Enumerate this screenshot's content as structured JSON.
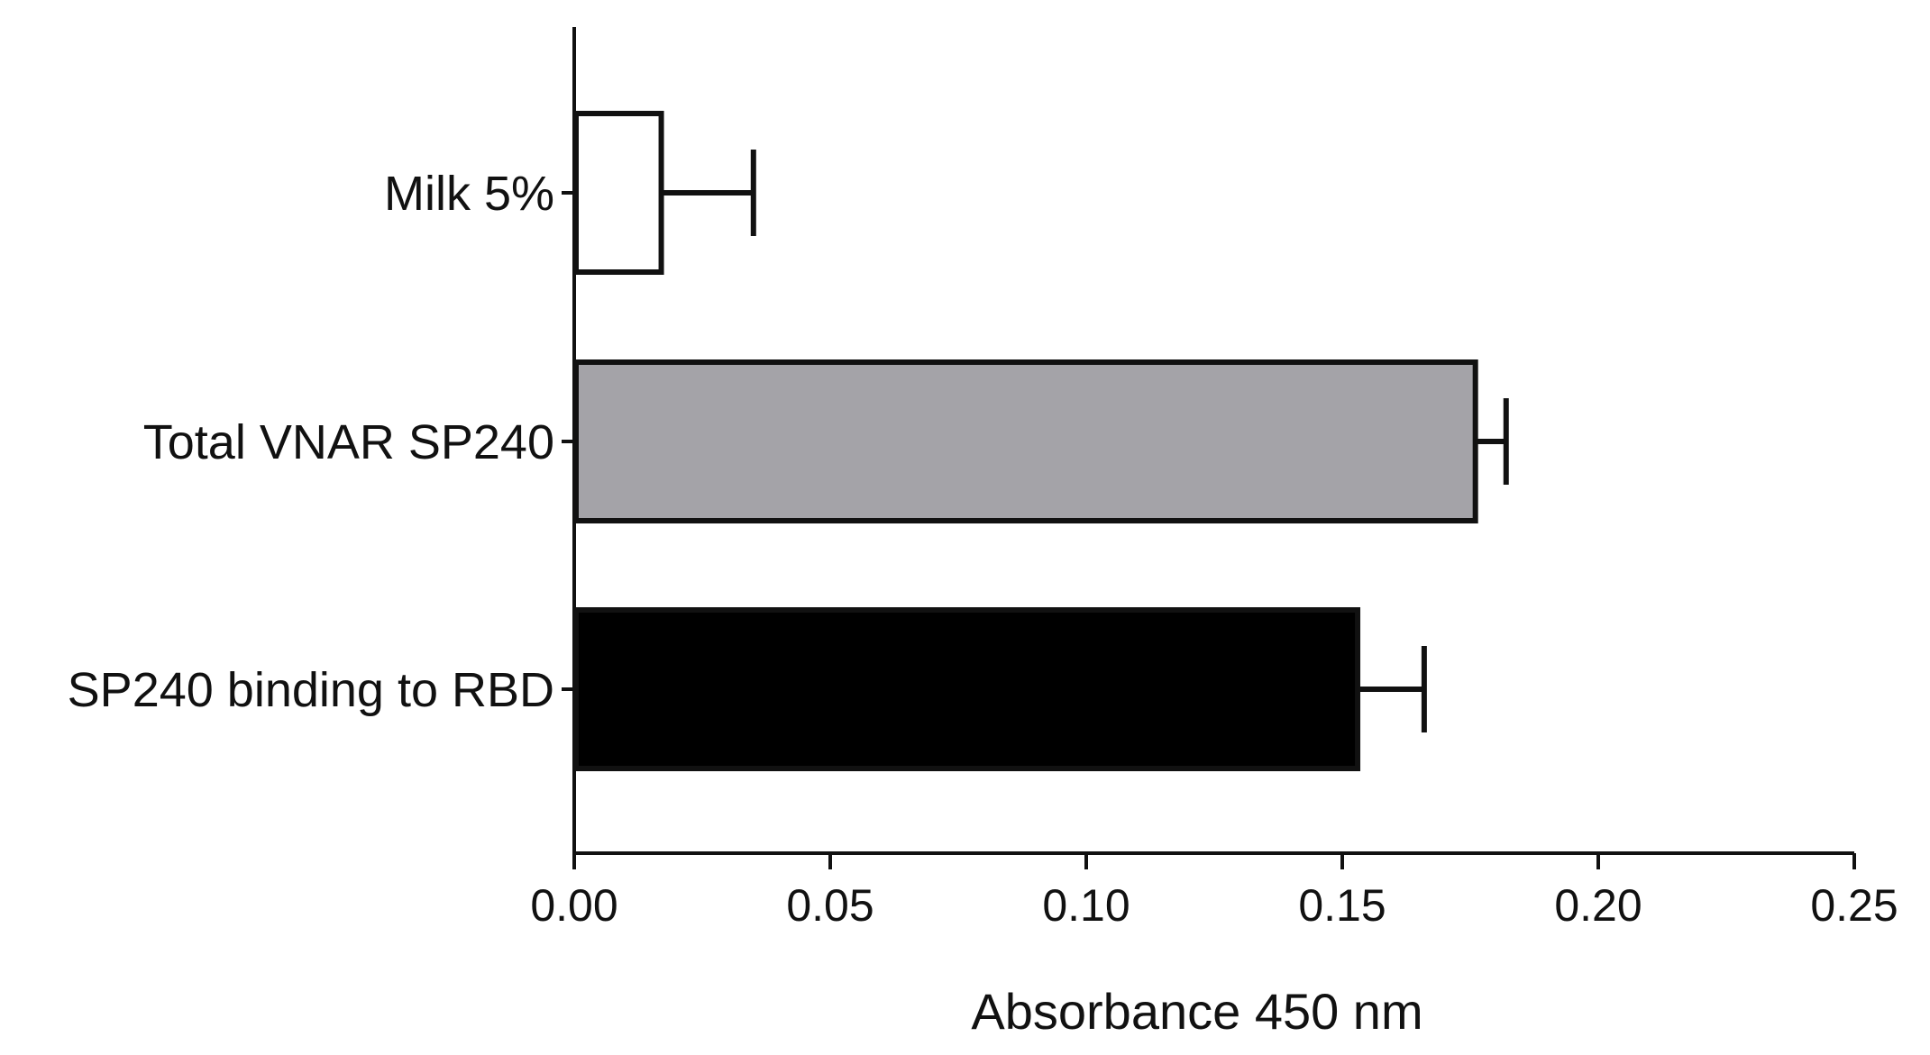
{
  "chart_data": {
    "type": "bar",
    "orientation": "horizontal",
    "categories": [
      "Milk 5%",
      "Total VNAR SP240",
      "SP240 binding to RBD"
    ],
    "values": [
      0.017,
      0.176,
      0.153
    ],
    "error_upper": [
      0.035,
      0.182,
      0.166
    ],
    "bar_colors": [
      "#ffffff",
      "#a4a3a8",
      "#000000"
    ],
    "xlabel": "Absorbance 450 nm",
    "ylabel": "",
    "title": "",
    "xlim": [
      0,
      0.25
    ],
    "x_ticks": [
      "0.00",
      "0.05",
      "0.10",
      "0.15",
      "0.20",
      "0.25"
    ],
    "grid": false,
    "legend": "none"
  }
}
